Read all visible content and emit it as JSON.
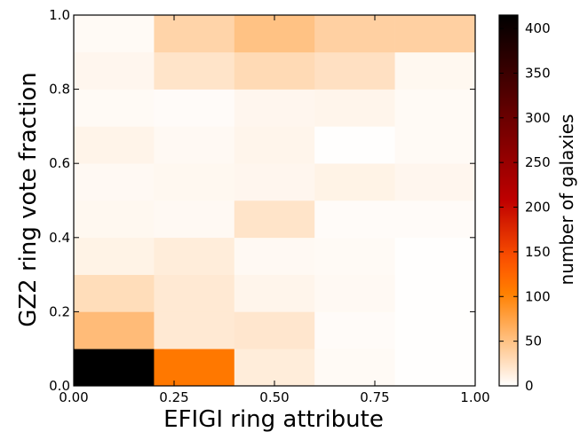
{
  "chart_data": {
    "type": "heatmap",
    "xlabel": "EFIGI ring attribute",
    "ylabel": "GZ2 ring vote fraction",
    "colorbar_label": "number of galaxies",
    "colormap": "gist_heat_r",
    "xlim": [
      0.0,
      1.0
    ],
    "ylim": [
      0.0,
      1.0
    ],
    "x_bin_edges": [
      0.0,
      0.2,
      0.4,
      0.6,
      0.8,
      1.0
    ],
    "y_bin_edges": [
      0.0,
      0.1,
      0.2,
      0.3,
      0.4,
      0.5,
      0.6,
      0.7,
      0.8,
      0.9,
      1.0
    ],
    "x_ticks": [
      "0.00",
      "0.25",
      "0.50",
      "0.75",
      "1.00"
    ],
    "y_ticks": [
      "0.0",
      "0.2",
      "0.4",
      "0.6",
      "0.8",
      "1.0"
    ],
    "colorbar_range": [
      0,
      415
    ],
    "colorbar_ticks": [
      "0",
      "50",
      "100",
      "150",
      "200",
      "250",
      "300",
      "350",
      "400"
    ],
    "counts": [
      [
        415,
        110,
        15,
        4,
        1
      ],
      [
        55,
        18,
        20,
        3,
        1
      ],
      [
        28,
        18,
        8,
        5,
        1
      ],
      [
        10,
        15,
        5,
        4,
        1
      ],
      [
        6,
        5,
        22,
        3,
        3
      ],
      [
        5,
        6,
        7,
        10,
        7
      ],
      [
        9,
        5,
        8,
        1,
        4
      ],
      [
        4,
        3,
        7,
        8,
        4
      ],
      [
        7,
        22,
        30,
        25,
        6
      ],
      [
        4,
        35,
        50,
        38,
        38
      ]
    ]
  }
}
